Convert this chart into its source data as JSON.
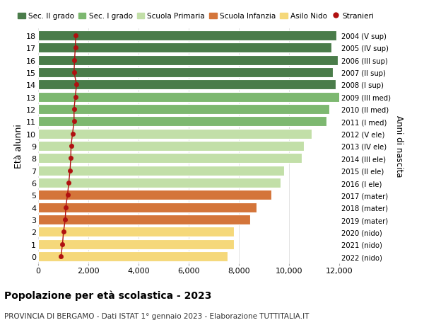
{
  "ages": [
    18,
    17,
    16,
    15,
    14,
    13,
    12,
    11,
    10,
    9,
    8,
    7,
    6,
    5,
    4,
    3,
    2,
    1,
    0
  ],
  "right_labels": [
    "2004 (V sup)",
    "2005 (IV sup)",
    "2006 (III sup)",
    "2007 (II sup)",
    "2008 (I sup)",
    "2009 (III med)",
    "2010 (II med)",
    "2011 (I med)",
    "2012 (V ele)",
    "2013 (IV ele)",
    "2014 (III ele)",
    "2015 (II ele)",
    "2016 (I ele)",
    "2017 (mater)",
    "2018 (mater)",
    "2019 (mater)",
    "2020 (nido)",
    "2021 (nido)",
    "2022 (nido)"
  ],
  "bar_values": [
    11900,
    11700,
    11950,
    11750,
    11850,
    12050,
    11600,
    11500,
    10900,
    10600,
    10500,
    9800,
    9650,
    9300,
    8700,
    8450,
    7800,
    7800,
    7550
  ],
  "bar_colors": [
    "#4a7c4a",
    "#4a7c4a",
    "#4a7c4a",
    "#4a7c4a",
    "#4a7c4a",
    "#7db870",
    "#7db870",
    "#7db870",
    "#c2dfa8",
    "#c2dfa8",
    "#c2dfa8",
    "#c2dfa8",
    "#c2dfa8",
    "#d4753a",
    "#d4753a",
    "#d4753a",
    "#f5d87a",
    "#f5d87a",
    "#f5d87a"
  ],
  "stranieri_values": [
    1500,
    1480,
    1450,
    1430,
    1530,
    1480,
    1430,
    1430,
    1370,
    1310,
    1300,
    1270,
    1220,
    1170,
    1100,
    1080,
    1010,
    970,
    910
  ],
  "stranieri_color": "#b01010",
  "ylabel": "Età alunni",
  "right_ylabel": "Anni di nascita",
  "xlim": [
    0,
    12000
  ],
  "xticks": [
    0,
    2000,
    4000,
    6000,
    8000,
    10000,
    12000
  ],
  "xtick_labels": [
    "0",
    "2,000",
    "4,000",
    "6,000",
    "8,000",
    "10,000",
    "12,000"
  ],
  "title": "Popolazione per età scolastica - 2023",
  "subtitle": "PROVINCIA DI BERGAMO - Dati ISTAT 1° gennaio 2023 - Elaborazione TUTTITALIA.IT",
  "legend_items": [
    {
      "label": "Sec. II grado",
      "color": "#4a7c4a"
    },
    {
      "label": "Sec. I grado",
      "color": "#7db870"
    },
    {
      "label": "Scuola Primaria",
      "color": "#c2dfa8"
    },
    {
      "label": "Scuola Infanzia",
      "color": "#d4753a"
    },
    {
      "label": "Asilo Nido",
      "color": "#f5d87a"
    },
    {
      "label": "Stranieri",
      "color": "#b01010"
    }
  ],
  "bg_color": "#ffffff",
  "grid_color": "#dddddd",
  "bar_height": 0.82
}
